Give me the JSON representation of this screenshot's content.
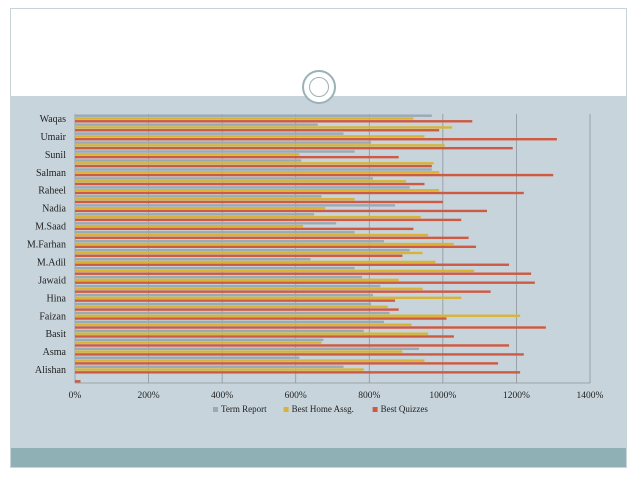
{
  "chart_data": {
    "type": "bar",
    "orientation": "horizontal",
    "categories": [
      "",
      "Alishan",
      "",
      "Asma",
      "",
      "Basit",
      "",
      "Faizan",
      "",
      "Hina",
      "",
      "Jawaid",
      "",
      "M.Adil",
      "",
      "M.Farhan",
      "",
      "M.Saad",
      "",
      "Nadia",
      "",
      "Raheel",
      "",
      "Salman",
      "",
      "Sunil",
      "",
      "Umair",
      "",
      "Waqas"
    ],
    "series": [
      {
        "name": "Term Report",
        "color": "#9aaab5",
        "values": [
          0,
          730,
          610,
          935,
          675,
          785,
          840,
          855,
          805,
          810,
          830,
          780,
          760,
          640,
          910,
          840,
          760,
          710,
          650,
          870,
          670,
          910,
          810,
          970,
          615,
          760,
          805,
          730,
          660,
          970
        ]
      },
      {
        "name": "Best Home Assg.",
        "color": "#d7b437",
        "values": [
          0,
          785,
          950,
          890,
          670,
          960,
          915,
          1210,
          850,
          1050,
          945,
          880,
          1085,
          980,
          945,
          1030,
          960,
          620,
          940,
          680,
          760,
          990,
          900,
          990,
          975,
          610,
          1005,
          950,
          1025,
          920
        ]
      },
      {
        "name": "Best Quizzes",
        "color": "#cf5a43",
        "values": [
          15,
          1210,
          1150,
          1220,
          1180,
          1030,
          1280,
          1010,
          880,
          870,
          1130,
          1250,
          1240,
          1180,
          890,
          1090,
          1070,
          920,
          1050,
          1120,
          1000,
          1220,
          950,
          1300,
          970,
          880,
          1190,
          1310,
          990,
          1080
        ]
      }
    ],
    "xlim": [
      0,
      1400
    ],
    "xticks": [
      0,
      200,
      400,
      600,
      800,
      1000,
      1200,
      1400
    ],
    "tick_suffix": "%",
    "grid": true,
    "legend_position": "bottom"
  }
}
